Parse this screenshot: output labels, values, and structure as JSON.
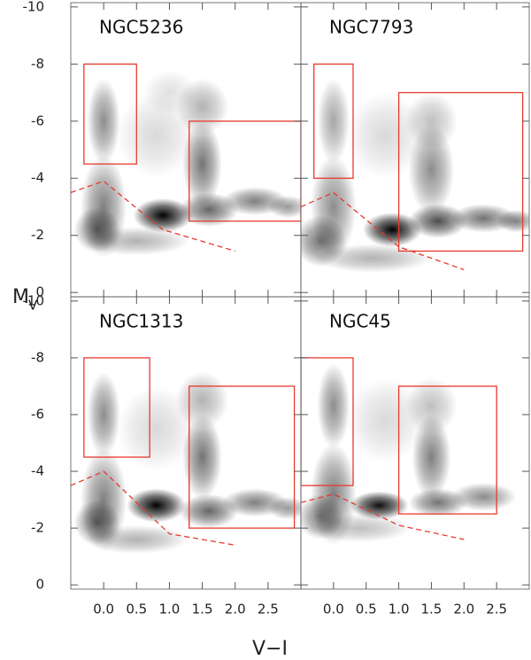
{
  "xlabel": "V−I",
  "ylabel": "M",
  "ylabel_sub": "V",
  "chart_data": [
    {
      "type": "density",
      "title": "NGC5236",
      "color": "#e8392f",
      "xlim": [
        -0.5,
        3.0
      ],
      "ylim": [
        0.15,
        -10.15
      ],
      "xticks": [
        {
          "value": 0,
          "label": "0.0"
        },
        0.5,
        {
          "value": 1,
          "label": "1.0"
        },
        1.5,
        {
          "value": 2,
          "label": "2.0"
        },
        2.5
      ],
      "yticks": [
        -10,
        -8,
        -6,
        -4,
        -2,
        0
      ],
      "density": [
        {
          "x": 0.0,
          "y": -3.0,
          "sx": 0.35,
          "sy": 1.8,
          "level": 0.5
        },
        {
          "x": 0.0,
          "y": -6.0,
          "sx": 0.25,
          "sy": 1.5,
          "level": 0.45
        },
        {
          "x": -0.1,
          "y": -2.2,
          "sx": 0.35,
          "sy": 0.8,
          "level": 0.55
        },
        {
          "x": 0.9,
          "y": -2.7,
          "sx": 0.45,
          "sy": 0.6,
          "level": 1.0
        },
        {
          "x": 1.5,
          "y": -4.5,
          "sx": 0.3,
          "sy": 1.5,
          "level": 0.55
        },
        {
          "x": 1.6,
          "y": -2.9,
          "sx": 0.45,
          "sy": 0.6,
          "level": 0.6
        },
        {
          "x": 2.3,
          "y": -3.2,
          "sx": 0.5,
          "sy": 0.5,
          "level": 0.5
        },
        {
          "x": 2.8,
          "y": -3.0,
          "sx": 0.3,
          "sy": 0.4,
          "level": 0.4
        },
        {
          "x": 0.8,
          "y": -5.5,
          "sx": 0.6,
          "sy": 1.5,
          "level": 0.15
        },
        {
          "x": 1.0,
          "y": -7.0,
          "sx": 0.4,
          "sy": 0.8,
          "level": 0.12
        },
        {
          "x": 1.5,
          "y": -6.5,
          "sx": 0.4,
          "sy": 1.0,
          "level": 0.3
        },
        {
          "x": 0.5,
          "y": -1.8,
          "sx": 0.8,
          "sy": 0.5,
          "level": 0.3
        }
      ],
      "boxes": [
        {
          "x0": -0.3,
          "x1": 0.5,
          "y0": -8,
          "y1": -4.5
        },
        {
          "x0": 1.3,
          "x1": 3.0,
          "y0": -6,
          "y1": -2.5
        }
      ],
      "dashed": {
        "x": [
          -0.5,
          0.0,
          0.9,
          2.0
        ],
        "y": [
          -3.5,
          -3.9,
          -2.2,
          -1.45
        ]
      }
    },
    {
      "type": "density",
      "title": "NGC7793",
      "color": "#e8392f",
      "xlim": [
        -0.5,
        3.0
      ],
      "ylim": [
        0.15,
        -10.15
      ],
      "xticks": [
        {
          "value": 0,
          "label": "0.0"
        },
        0.5,
        {
          "value": 1,
          "label": "1.0"
        },
        1.5,
        {
          "value": 2,
          "label": "2.0"
        },
        2.5
      ],
      "yticks": [
        -10,
        -8,
        -6,
        -4,
        -2,
        0
      ],
      "density": [
        {
          "x": 0.0,
          "y": -3.0,
          "sx": 0.35,
          "sy": 1.8,
          "level": 0.45
        },
        {
          "x": 0.0,
          "y": -6.0,
          "sx": 0.25,
          "sy": 1.5,
          "level": 0.35
        },
        {
          "x": -0.2,
          "y": -1.8,
          "sx": 0.4,
          "sy": 0.9,
          "level": 0.55
        },
        {
          "x": 0.9,
          "y": -2.2,
          "sx": 0.45,
          "sy": 0.6,
          "level": 1.0
        },
        {
          "x": 1.5,
          "y": -4.3,
          "sx": 0.35,
          "sy": 1.6,
          "level": 0.45
        },
        {
          "x": 1.6,
          "y": -2.5,
          "sx": 0.45,
          "sy": 0.6,
          "level": 0.7
        },
        {
          "x": 2.3,
          "y": -2.6,
          "sx": 0.5,
          "sy": 0.5,
          "level": 0.55
        },
        {
          "x": 2.8,
          "y": -2.5,
          "sx": 0.3,
          "sy": 0.4,
          "level": 0.5
        },
        {
          "x": 0.8,
          "y": -5.5,
          "sx": 0.6,
          "sy": 1.5,
          "level": 0.15
        },
        {
          "x": 1.5,
          "y": -6.0,
          "sx": 0.4,
          "sy": 1.0,
          "level": 0.25
        },
        {
          "x": 0.6,
          "y": -1.2,
          "sx": 0.9,
          "sy": 0.5,
          "level": 0.3
        }
      ],
      "boxes": [
        {
          "x0": -0.3,
          "x1": 0.3,
          "y0": -8,
          "y1": -4
        },
        {
          "x0": 1.0,
          "x1": 2.9,
          "y0": -7,
          "y1": -1.45
        }
      ],
      "dashed": {
        "x": [
          -0.5,
          0.0,
          1.0,
          2.0
        ],
        "y": [
          -3.0,
          -3.5,
          -1.6,
          -0.8
        ]
      }
    },
    {
      "type": "density",
      "title": "NGC1313",
      "color": "#e8392f",
      "xlim": [
        -0.5,
        3.0
      ],
      "ylim": [
        0.15,
        -10.15
      ],
      "xticks": [
        {
          "value": 0,
          "label": "0.0"
        },
        0.5,
        {
          "value": 1,
          "label": "1.0"
        },
        1.5,
        {
          "value": 2,
          "label": "2.0"
        },
        2.5
      ],
      "yticks": [
        -10,
        -8,
        -6,
        -4,
        -2,
        0
      ],
      "density": [
        {
          "x": 0.0,
          "y": -3.0,
          "sx": 0.35,
          "sy": 1.8,
          "level": 0.5
        },
        {
          "x": 0.0,
          "y": -6.0,
          "sx": 0.25,
          "sy": 1.5,
          "level": 0.45
        },
        {
          "x": -0.1,
          "y": -2.2,
          "sx": 0.35,
          "sy": 0.8,
          "level": 0.55
        },
        {
          "x": 0.8,
          "y": -2.8,
          "sx": 0.45,
          "sy": 0.6,
          "level": 1.0
        },
        {
          "x": 1.5,
          "y": -4.5,
          "sx": 0.3,
          "sy": 1.5,
          "level": 0.55
        },
        {
          "x": 1.6,
          "y": -2.6,
          "sx": 0.45,
          "sy": 0.6,
          "level": 0.6
        },
        {
          "x": 2.3,
          "y": -2.9,
          "sx": 0.5,
          "sy": 0.5,
          "level": 0.5
        },
        {
          "x": 2.8,
          "y": -2.7,
          "sx": 0.3,
          "sy": 0.4,
          "level": 0.4
        },
        {
          "x": 0.8,
          "y": -5.5,
          "sx": 0.6,
          "sy": 1.5,
          "level": 0.15
        },
        {
          "x": 1.5,
          "y": -6.5,
          "sx": 0.4,
          "sy": 1.0,
          "level": 0.3
        },
        {
          "x": 0.5,
          "y": -1.6,
          "sx": 0.8,
          "sy": 0.5,
          "level": 0.3
        }
      ],
      "boxes": [
        {
          "x0": -0.3,
          "x1": 0.7,
          "y0": -8,
          "y1": -4.5
        },
        {
          "x0": 1.3,
          "x1": 2.9,
          "y0": -7,
          "y1": -2
        }
      ],
      "dashed": {
        "x": [
          -0.5,
          0.0,
          1.0,
          2.0
        ],
        "y": [
          -3.5,
          -4.0,
          -1.8,
          -1.4
        ]
      }
    },
    {
      "type": "density",
      "title": "NGC45",
      "color": "#e8392f",
      "xlim": [
        -0.5,
        3.0
      ],
      "ylim": [
        0.15,
        -10.15
      ],
      "xticks": [
        {
          "value": 0,
          "label": "0.0"
        },
        0.5,
        {
          "value": 1,
          "label": "1.0"
        },
        1.5,
        {
          "value": 2,
          "label": "2.0"
        },
        2.5
      ],
      "yticks": [
        -10,
        -8,
        -6,
        -4,
        -2,
        0
      ],
      "density": [
        {
          "x": 0.0,
          "y": -3.2,
          "sx": 0.35,
          "sy": 1.8,
          "level": 0.5
        },
        {
          "x": 0.0,
          "y": -6.3,
          "sx": 0.25,
          "sy": 1.5,
          "level": 0.45
        },
        {
          "x": -0.2,
          "y": -2.4,
          "sx": 0.35,
          "sy": 0.8,
          "level": 0.5
        },
        {
          "x": 0.7,
          "y": -2.8,
          "sx": 0.45,
          "sy": 0.5,
          "level": 0.95
        },
        {
          "x": 1.5,
          "y": -4.5,
          "sx": 0.3,
          "sy": 1.5,
          "level": 0.5
        },
        {
          "x": 1.6,
          "y": -2.9,
          "sx": 0.45,
          "sy": 0.5,
          "level": 0.55
        },
        {
          "x": 2.3,
          "y": -3.1,
          "sx": 0.5,
          "sy": 0.5,
          "level": 0.45
        },
        {
          "x": 0.8,
          "y": -5.8,
          "sx": 0.6,
          "sy": 1.5,
          "level": 0.15
        },
        {
          "x": 1.5,
          "y": -6.3,
          "sx": 0.4,
          "sy": 1.0,
          "level": 0.25
        },
        {
          "x": 0.4,
          "y": -2.0,
          "sx": 0.8,
          "sy": 0.5,
          "level": 0.25
        }
      ],
      "boxes": [
        {
          "x0": -0.5,
          "x1": 0.3,
          "y0": -8,
          "y1": -3.5
        },
        {
          "x0": 1.0,
          "x1": 2.5,
          "y0": -7,
          "y1": -2.5
        }
      ],
      "dashed": {
        "x": [
          -0.5,
          0.0,
          1.0,
          2.0
        ],
        "y": [
          -2.9,
          -3.2,
          -2.1,
          -1.6
        ]
      }
    }
  ]
}
